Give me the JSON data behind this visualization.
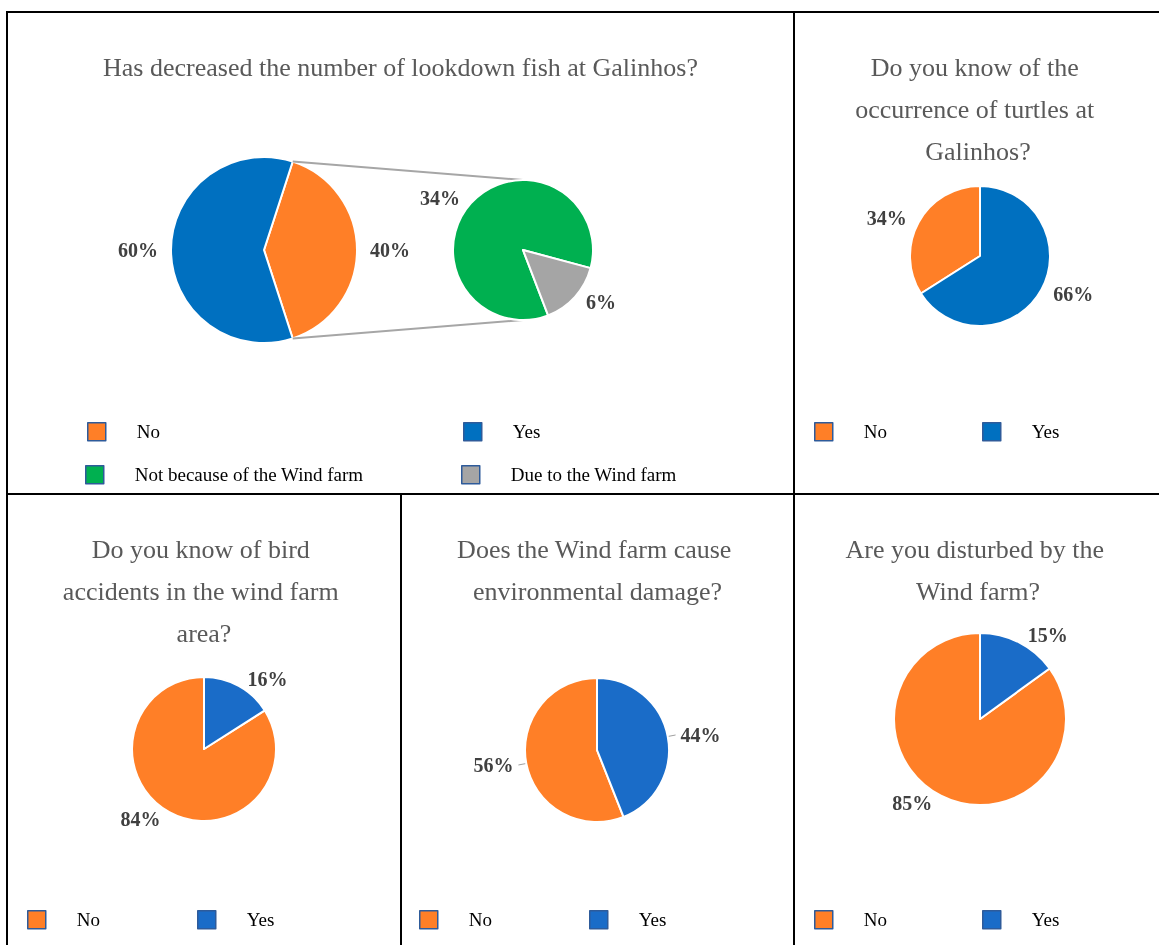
{
  "chart_data": [
    {
      "type": "pie",
      "title": "Has decreased the number of lookdown fish at Galinhos?",
      "categories": [
        "No",
        "Yes"
      ],
      "values": [
        40,
        60
      ],
      "colors": [
        "#ff7f27",
        "#0070c0"
      ],
      "value_labels": [
        "40%",
        "60%"
      ],
      "legend": "bottom"
    },
    {
      "type": "pie",
      "categories": [
        "Not because of the Wind farm",
        "Due to the Wind farm"
      ],
      "values": [
        34,
        6
      ],
      "colors": [
        "#00b050",
        "#a5a5a5"
      ],
      "value_labels": [
        "34%",
        "6%"
      ],
      "legend": "bottom"
    },
    {
      "type": "pie",
      "title": "Do you know of the occurrence of turtles at Galinhos?",
      "categories": [
        "No",
        "Yes"
      ],
      "values": [
        34,
        66
      ],
      "colors": [
        "#ff7f27",
        "#0070c0"
      ],
      "value_labels": [
        "34%",
        "66%"
      ],
      "legend": "bottom"
    },
    {
      "type": "pie",
      "title": "Do you know of bird accidents in the wind farm area?",
      "categories": [
        "No",
        "Yes"
      ],
      "values": [
        84,
        16
      ],
      "colors": [
        "#ff7f27",
        "#1a6cc8"
      ],
      "value_labels": [
        "84%",
        "16%"
      ],
      "legend": "bottom"
    },
    {
      "type": "pie",
      "title": "Does the Wind farm cause environmental damage?",
      "categories": [
        "No",
        "Yes"
      ],
      "values": [
        56,
        44
      ],
      "colors": [
        "#ff7f27",
        "#1a6cc8"
      ],
      "value_labels": [
        "56%",
        "44%"
      ],
      "legend": "bottom"
    },
    {
      "type": "pie",
      "title": "Are you disturbed by the Wind farm?",
      "categories": [
        "No",
        "Yes"
      ],
      "values": [
        85,
        15
      ],
      "colors": [
        "#ff7f27",
        "#1a6cc8"
      ],
      "value_labels": [
        "85%",
        "15%"
      ],
      "legend": "bottom"
    }
  ]
}
